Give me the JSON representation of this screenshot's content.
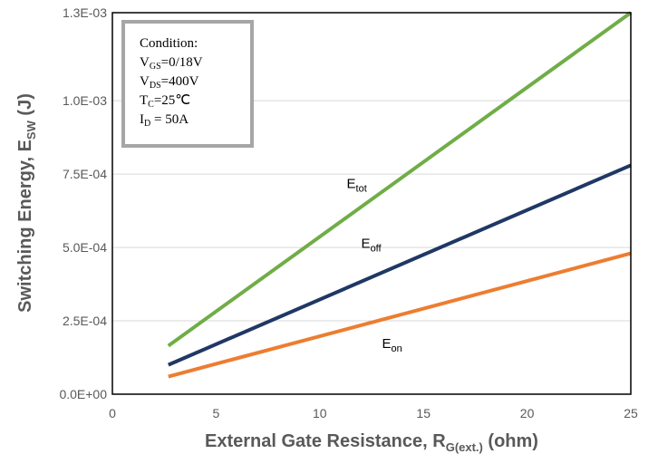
{
  "chart_data": {
    "type": "line",
    "xlabel": {
      "main": "External Gate Resistance, R",
      "sub": "G(ext.)",
      "suffix": " (ohm)"
    },
    "ylabel": {
      "main": "Switching Energy, E",
      "sub": "SW",
      "suffix": " (J)"
    },
    "xlim": [
      0,
      25
    ],
    "ylim": [
      0,
      0.0013
    ],
    "x_ticks": [
      {
        "value": 0,
        "label": "0"
      },
      {
        "value": 5,
        "label": "5"
      },
      {
        "value": 10,
        "label": "10"
      },
      {
        "value": 15,
        "label": "15"
      },
      {
        "value": 20,
        "label": "20"
      },
      {
        "value": 25,
        "label": "25"
      }
    ],
    "y_ticks": [
      {
        "value": 0,
        "label": "0.0E+00"
      },
      {
        "value": 0.00025,
        "label": "2.5E-04"
      },
      {
        "value": 0.0005,
        "label": "5.0E-04"
      },
      {
        "value": 0.00075,
        "label": "7.5E-04"
      },
      {
        "value": 0.001,
        "label": "1.0E-03"
      },
      {
        "value": 0.0013,
        "label": "1.3E-03"
      }
    ],
    "grid": true,
    "series": [
      {
        "name": "E",
        "sub": "tot",
        "color": "#70ad47",
        "x": [
          2.7,
          25
        ],
        "y": [
          0.000165,
          0.0013
        ],
        "label_at": [
          11.3,
          0.000702
        ]
      },
      {
        "name": "E",
        "sub": "off",
        "color": "#1f3864",
        "x": [
          2.7,
          25
        ],
        "y": [
          0.0001,
          0.00078
        ],
        "label_at": [
          12.0,
          0.000498
        ]
      },
      {
        "name": "E",
        "sub": "on",
        "color": "#ed7d31",
        "x": [
          2.7,
          25
        ],
        "y": [
          6e-05,
          0.00048
        ],
        "label_at": [
          13.0,
          0.000158
        ]
      }
    ],
    "annotation": {
      "lines": [
        {
          "main": "Condition:",
          "sub": "",
          "rest": ""
        },
        {
          "main": "V",
          "sub": "GS",
          "rest": "=0/18V"
        },
        {
          "main": "V",
          "sub": "DS",
          "rest": "=400V"
        },
        {
          "main": "T",
          "sub": "C",
          "rest": "=25℃"
        },
        {
          "main": "I",
          "sub": "D",
          "rest": " = 50A"
        }
      ]
    }
  }
}
